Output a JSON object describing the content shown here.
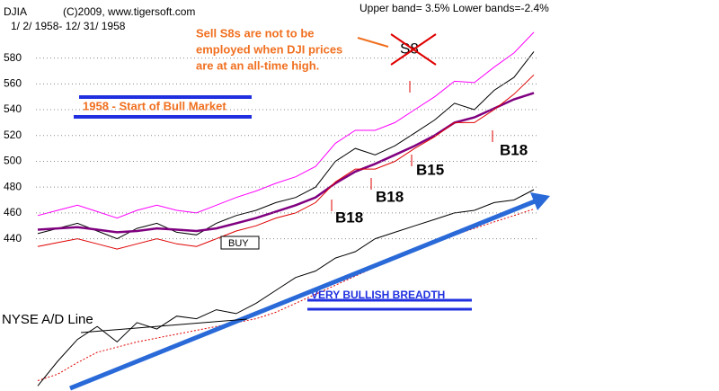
{
  "chart_data": {
    "type": "line",
    "title": "DJIA",
    "subtitle": "(C)2009, www.tigersoft.com",
    "date_range": "1/ 2/ 1958- 12/ 31/ 1958",
    "band_note": "Upper band= 3.5%  Lower bands=-2.4%",
    "annotations": [
      "Sell S8s are not to be",
      "employed when DJI prices",
      "are at an all-time high.",
      "S8",
      "1958 - Start of Bull Market",
      "BUY",
      "B18",
      "B15",
      "B18",
      "B18",
      "VERY BULLISH BREADTH",
      "NYSE A/D Line"
    ],
    "ylim": [
      322,
      625
    ],
    "yticks": [
      440,
      460,
      480,
      500,
      520,
      540,
      560,
      580
    ],
    "grid": true,
    "series": [
      {
        "color": "#ff00ff",
        "values": [
          458,
          462,
          466,
          461,
          456,
          462,
          466,
          462,
          460,
          466,
          472,
          477,
          483,
          488,
          496,
          514,
          524,
          524,
          530,
          540,
          550,
          562,
          561,
          573,
          584,
          600
        ]
      },
      {
        "color": "#e00000",
        "values": [
          434,
          437,
          440,
          436,
          432,
          436,
          440,
          436,
          434,
          440,
          446,
          450,
          456,
          460,
          468,
          484,
          494,
          494,
          500,
          510,
          519,
          530,
          530,
          540,
          552,
          567
        ]
      },
      {
        "color": "#800080",
        "values": [
          447,
          448,
          449,
          447,
          445,
          446,
          448,
          447,
          446,
          448,
          452,
          456,
          461,
          466,
          472,
          483,
          492,
          498,
          505,
          512,
          520,
          530,
          534,
          541,
          548,
          553
        ]
      },
      {
        "color": "#000000",
        "values": [
          444,
          448,
          452,
          446,
          440,
          448,
          452,
          445,
          443,
          452,
          458,
          462,
          468,
          472,
          480,
          500,
          510,
          505,
          512,
          522,
          532,
          545,
          540,
          555,
          565,
          585
        ]
      },
      {
        "color": "#000000",
        "values": [
          326,
          345,
          362,
          372,
          360,
          375,
          370,
          380,
          378,
          385,
          382,
          390,
          400,
          410,
          415,
          425,
          430,
          440,
          445,
          450,
          455,
          460,
          462,
          468,
          470,
          478
        ]
      },
      {
        "color": "#e00000",
        "dashed": true,
        "values": [
          330,
          335,
          344,
          352,
          356,
          360,
          363,
          366,
          369,
          372,
          375,
          378,
          383,
          390,
          397,
          404,
          411,
          418,
          425,
          431,
          437,
          443,
          448,
          453,
          458,
          463
        ]
      }
    ]
  }
}
